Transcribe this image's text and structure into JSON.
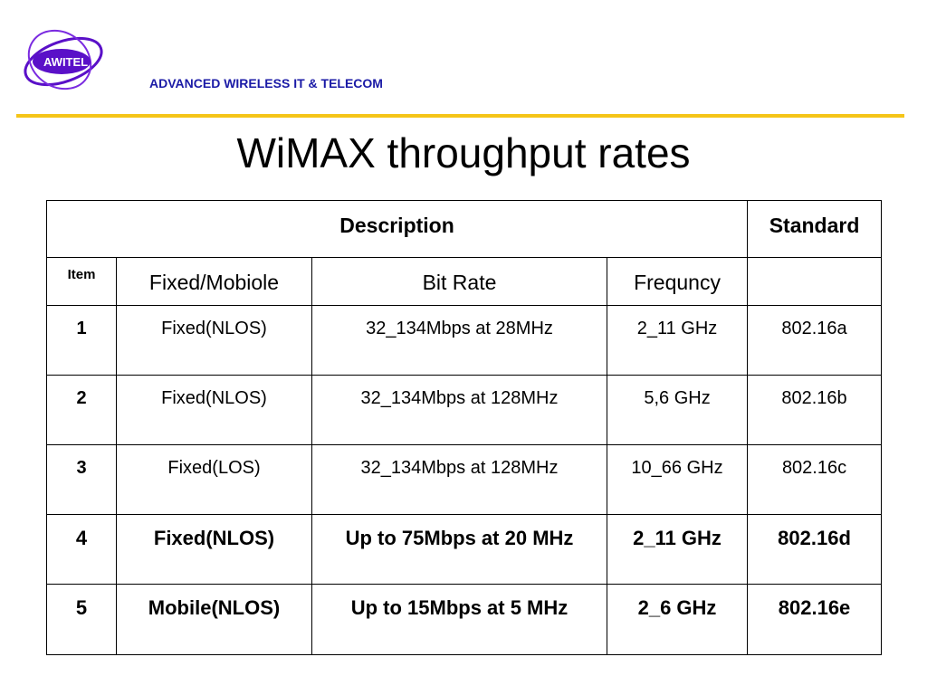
{
  "header": {
    "company": "ADVANCED WIRELESS IT & TELECOM",
    "logo_text": "AWITEL",
    "accent_color": "#f5c518",
    "logo_color": "#5a10c8"
  },
  "slide": {
    "title": "WiMAX throughput rates"
  },
  "table": {
    "group_headers": {
      "description": "Description",
      "standard": "Standard"
    },
    "columns": {
      "item": "Item",
      "fixed_mobile": "Fixed/Mobiole",
      "bit_rate": "Bit Rate",
      "frequency": "Frequncy"
    },
    "rows": [
      {
        "item": "1",
        "mode": "Fixed(NLOS)",
        "bit_rate": "32_134Mbps at 28MHz",
        "frequency": "2_11 GHz",
        "standard": "802.16a"
      },
      {
        "item": "2",
        "mode": "Fixed(NLOS)",
        "bit_rate": "32_134Mbps at 128MHz",
        "frequency": "5,6 GHz",
        "standard": "802.16b"
      },
      {
        "item": "3",
        "mode": "Fixed(LOS)",
        "bit_rate": "32_134Mbps at 128MHz",
        "frequency": "10_66 GHz",
        "standard": "802.16c"
      },
      {
        "item": "4",
        "mode": "Fixed(NLOS)",
        "bit_rate": "Up to 75Mbps at 20 MHz",
        "frequency": "2_11 GHz",
        "standard": "802.16d"
      },
      {
        "item": "5",
        "mode": "Mobile(NLOS)",
        "bit_rate": "Up to 15Mbps at 5 MHz",
        "frequency": "2_6 GHz",
        "standard": "802.16e"
      }
    ]
  }
}
